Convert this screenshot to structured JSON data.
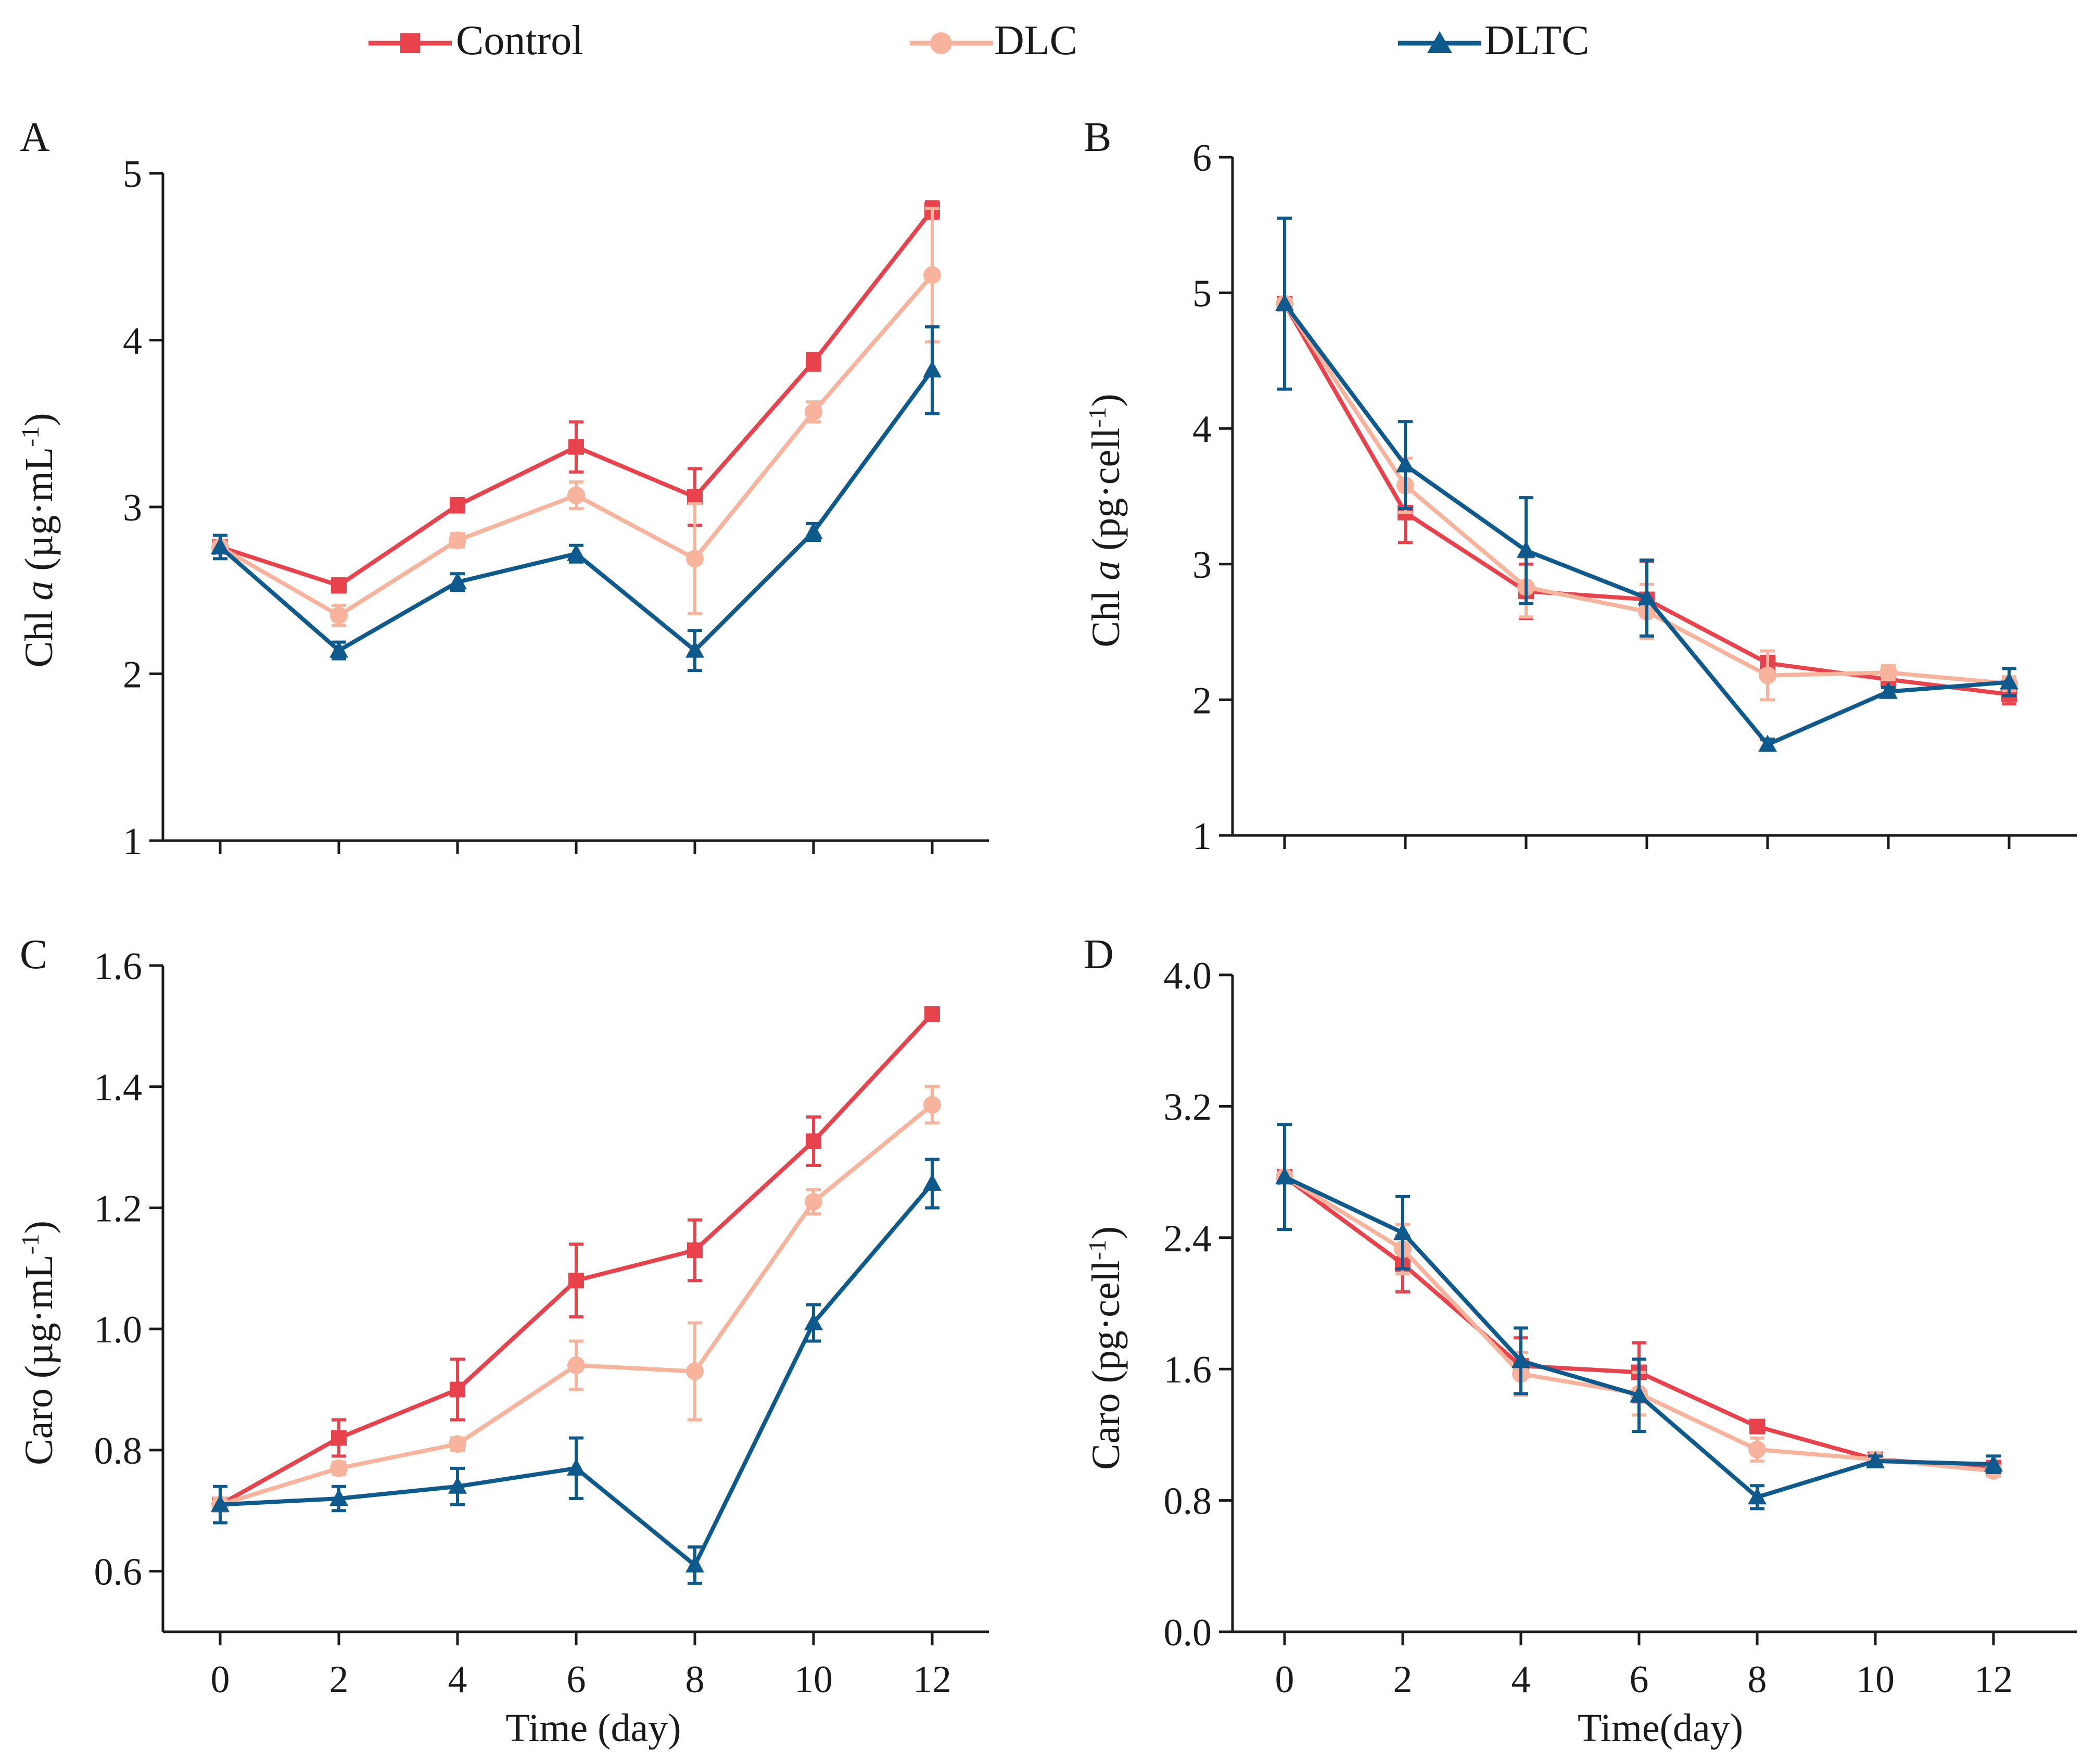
{
  "legend": [
    {
      "name": "Control",
      "color": "#e8434c",
      "marker": "square"
    },
    {
      "name": "DLC",
      "color": "#f7b39b",
      "marker": "circle"
    },
    {
      "name": "DLTC",
      "color": "#0f5a8c",
      "marker": "triangle"
    }
  ],
  "chart_data": [
    {
      "panel": "A",
      "type": "line",
      "xlabel": "",
      "ylabel_main": "Chl ",
      "ylabel_italic": "a",
      "ylabel_unit": " (µg·mL",
      "ylabel_sup": "-1",
      "ylabel_close": ")",
      "ylim": [
        1,
        5
      ],
      "yticks": [
        "1",
        "2",
        "3",
        "4",
        "5"
      ],
      "x": [
        0,
        2,
        4,
        6,
        8,
        10,
        12
      ],
      "xticks": [],
      "series": [
        {
          "name": "Control",
          "values": [
            2.76,
            2.53,
            3.01,
            3.36,
            3.06,
            3.87,
            4.78
          ],
          "err": [
            0.03,
            0.04,
            0.04,
            0.15,
            0.17,
            0.05,
            0.05
          ]
        },
        {
          "name": "DLC",
          "values": [
            2.76,
            2.35,
            2.8,
            3.07,
            2.69,
            3.57,
            4.39
          ],
          "err": [
            0.03,
            0.06,
            0.04,
            0.08,
            0.33,
            0.06,
            0.4
          ]
        },
        {
          "name": "DLTC",
          "values": [
            2.76,
            2.14,
            2.55,
            2.72,
            2.14,
            2.85,
            3.82
          ],
          "err": [
            0.07,
            0.05,
            0.05,
            0.05,
            0.12,
            0.05,
            0.26
          ]
        }
      ]
    },
    {
      "panel": "B",
      "type": "line",
      "xlabel": "",
      "ylabel_main": "Chl ",
      "ylabel_italic": "a",
      "ylabel_unit": " (pg·cell",
      "ylabel_sup": "-1",
      "ylabel_close": ")",
      "ylim": [
        1,
        6
      ],
      "yticks": [
        "1",
        "2",
        "3",
        "4",
        "5",
        "6"
      ],
      "x": [
        0,
        2,
        4,
        6,
        8,
        10,
        12
      ],
      "xticks": [],
      "series": [
        {
          "name": "Control",
          "values": [
            4.92,
            3.38,
            2.8,
            2.74,
            2.27,
            2.15,
            2.04
          ],
          "err": [
            0.03,
            0.22,
            0.2,
            0.28,
            0.05,
            0.05,
            0.07
          ]
        },
        {
          "name": "DLC",
          "values": [
            4.92,
            3.58,
            2.83,
            2.65,
            2.18,
            2.2,
            2.12
          ],
          "err": [
            0.03,
            0.2,
            0.22,
            0.2,
            0.18,
            0.05,
            0.05
          ]
        },
        {
          "name": "DLTC",
          "values": [
            4.92,
            3.73,
            3.1,
            2.75,
            1.67,
            2.06,
            2.13
          ],
          "err": [
            0.63,
            0.32,
            0.39,
            0.28,
            0.04,
            0.03,
            0.1
          ]
        }
      ]
    },
    {
      "panel": "C",
      "type": "line",
      "xlabel": "Time (day)",
      "ylabel_main": "Caro (µg·mL",
      "ylabel_italic": "",
      "ylabel_unit": "",
      "ylabel_sup": "-1",
      "ylabel_close": ")",
      "ylim": [
        0.5,
        1.6
      ],
      "yticks": [
        "0.6",
        "0.8",
        "1.0",
        "1.2",
        "1.4",
        "1.6"
      ],
      "ytick_values": [
        0.6,
        0.8,
        1.0,
        1.2,
        1.4,
        1.6
      ],
      "x": [
        0,
        2,
        4,
        6,
        8,
        10,
        12
      ],
      "xticks": [
        "0",
        "2",
        "4",
        "6",
        "8",
        "10",
        "12"
      ],
      "series": [
        {
          "name": "Control",
          "values": [
            0.71,
            0.82,
            0.9,
            1.08,
            1.13,
            1.31,
            1.52
          ],
          "err": [
            0.01,
            0.03,
            0.05,
            0.06,
            0.05,
            0.04,
            0.01
          ]
        },
        {
          "name": "DLC",
          "values": [
            0.71,
            0.77,
            0.81,
            0.94,
            0.93,
            1.21,
            1.37
          ],
          "err": [
            0.01,
            0.01,
            0.01,
            0.04,
            0.08,
            0.02,
            0.03
          ]
        },
        {
          "name": "DLTC",
          "values": [
            0.71,
            0.72,
            0.74,
            0.77,
            0.61,
            1.01,
            1.24
          ],
          "err": [
            0.03,
            0.02,
            0.03,
            0.05,
            0.03,
            0.03,
            0.04
          ]
        }
      ]
    },
    {
      "panel": "D",
      "type": "line",
      "xlabel": "Time(day)",
      "ylabel_main": "Caro (pg·cell",
      "ylabel_italic": "",
      "ylabel_unit": "",
      "ylabel_sup": "-1",
      "ylabel_close": ")",
      "ylim": [
        0,
        4
      ],
      "yticks": [
        "0.0",
        "0.8",
        "1.6",
        "2.4",
        "3.2",
        "4.0"
      ],
      "ytick_values": [
        0,
        0.8,
        1.6,
        2.4,
        3.2,
        4.0
      ],
      "x": [
        0,
        2,
        4,
        6,
        8,
        10,
        12
      ],
      "xticks": [
        "0",
        "2",
        "4",
        "6",
        "8",
        "10",
        "12"
      ],
      "series": [
        {
          "name": "Control",
          "values": [
            2.77,
            2.24,
            1.62,
            1.58,
            1.25,
            1.05,
            1.0
          ],
          "err": [
            0.02,
            0.17,
            0.17,
            0.18,
            0.03,
            0.03,
            0.03
          ]
        },
        {
          "name": "DLC",
          "values": [
            2.77,
            2.33,
            1.57,
            1.45,
            1.11,
            1.05,
            0.98
          ],
          "err": [
            0.02,
            0.15,
            0.13,
            0.13,
            0.07,
            0.03,
            0.03
          ]
        },
        {
          "name": "DLTC",
          "values": [
            2.77,
            2.43,
            1.65,
            1.44,
            0.82,
            1.04,
            1.02
          ],
          "err": [
            0.32,
            0.22,
            0.2,
            0.22,
            0.07,
            0.03,
            0.05
          ]
        }
      ]
    }
  ]
}
